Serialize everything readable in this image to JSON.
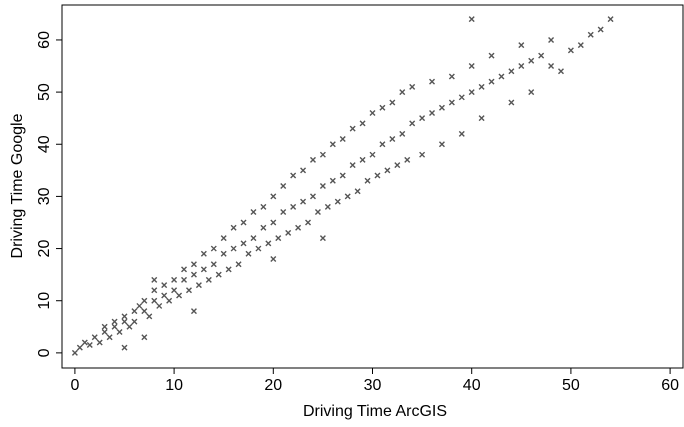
{
  "chart_data": {
    "type": "scatter",
    "x_label": "Driving Time ArcGIS",
    "y_label": "Driving Time Google",
    "xlim": [
      -1.3,
      61.3
    ],
    "ylim": [
      -2.9,
      66.7
    ],
    "xticks": [
      0,
      10,
      20,
      30,
      40,
      50,
      60
    ],
    "yticks": [
      0,
      10,
      20,
      30,
      40,
      50,
      60
    ],
    "color": "#555555",
    "x": [
      0,
      0.5,
      1,
      1.5,
      2,
      2.5,
      3,
      3,
      3.5,
      4,
      4,
      4.5,
      5,
      5,
      5.5,
      5,
      6,
      6,
      6.5,
      7,
      7,
      7.5,
      8,
      8,
      8.5,
      9,
      9,
      9.5,
      10,
      10,
      10.5,
      11,
      11,
      11.5,
      12,
      12,
      12.5,
      13,
      13,
      13.5,
      14,
      14,
      14.5,
      15,
      15,
      15.5,
      16,
      16,
      16.5,
      17,
      17,
      17.5,
      18,
      18,
      18.5,
      19,
      19,
      19.5,
      20,
      20,
      20.5,
      21,
      21,
      21.5,
      22,
      22,
      22.5,
      23,
      23,
      23.5,
      24,
      24,
      24.5,
      25,
      25,
      25.5,
      26,
      26,
      26.5,
      27,
      27,
      27.5,
      28,
      28,
      28.5,
      29,
      29,
      29.5,
      30,
      30,
      30.5,
      31,
      31,
      31.5,
      32,
      32,
      32.5,
      33,
      33,
      33.5,
      34,
      34,
      35,
      35,
      36,
      36,
      37,
      37,
      38,
      38,
      39,
      39,
      40,
      40,
      41,
      41,
      42,
      42,
      43,
      44,
      44,
      45,
      45,
      46,
      46,
      47,
      48,
      48,
      49,
      50,
      51,
      52,
      53,
      54,
      40,
      8,
      12,
      20,
      7,
      25
    ],
    "y": [
      0,
      1,
      2,
      1.5,
      3,
      2,
      4,
      5,
      3,
      5,
      6,
      4,
      6,
      7,
      5,
      1,
      8,
      6,
      9,
      8,
      10,
      7,
      10,
      12,
      9,
      11,
      13,
      10,
      12,
      14,
      11,
      14,
      16,
      12,
      15,
      17,
      13,
      16,
      19,
      14,
      17,
      20,
      15,
      19,
      22,
      16,
      20,
      24,
      17,
      21,
      25,
      19,
      22,
      27,
      20,
      24,
      28,
      21,
      25,
      30,
      22,
      27,
      32,
      23,
      28,
      34,
      24,
      29,
      35,
      25,
      30,
      37,
      27,
      32,
      38,
      28,
      33,
      40,
      29,
      34,
      41,
      30,
      36,
      43,
      31,
      37,
      44,
      33,
      38,
      46,
      34,
      40,
      47,
      35,
      41,
      48,
      36,
      42,
      50,
      37,
      44,
      51,
      45,
      38,
      46,
      52,
      47,
      40,
      48,
      53,
      49,
      42,
      50,
      55,
      51,
      45,
      52,
      57,
      53,
      54,
      48,
      55,
      59,
      56,
      50,
      57,
      60,
      55,
      54,
      58,
      59,
      61,
      62,
      64,
      64,
      14,
      8,
      18,
      3,
      22
    ]
  }
}
